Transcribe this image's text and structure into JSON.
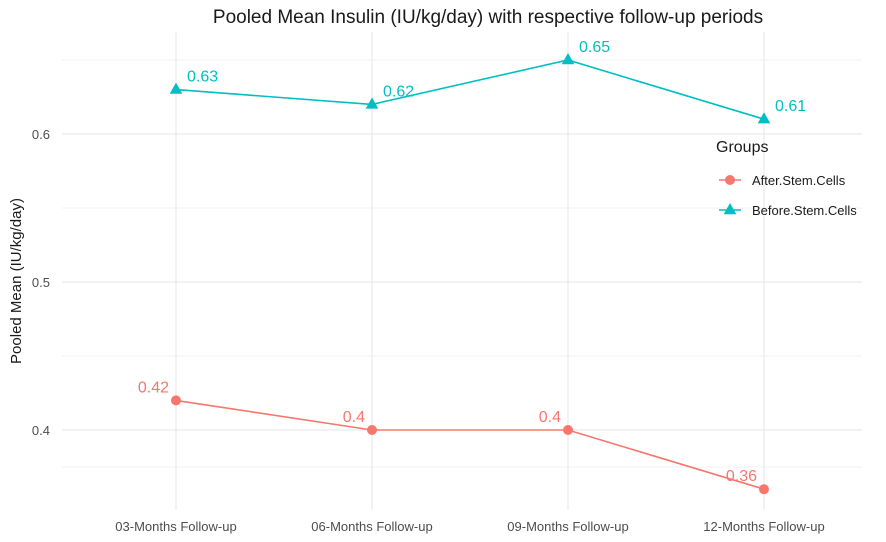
{
  "chart_data": {
    "type": "line",
    "title": "Pooled Mean Insulin (IU/kg/day) with respective follow-up periods",
    "xlabel": "",
    "ylabel": "Pooled Mean (IU/kg/day)",
    "categories": [
      "03-Months Follow-up",
      "06-Months Follow-up",
      "09-Months Follow-up",
      "12-Months Follow-up"
    ],
    "ylim": [
      0.35,
      0.66
    ],
    "yticks": [
      0.4,
      0.5,
      0.6
    ],
    "ytick_labels": [
      "0.4",
      "0.5",
      "0.6"
    ],
    "grid": true,
    "legend": {
      "title": "Groups",
      "position": "right",
      "entries": [
        "After.Stem.Cells",
        "Before.Stem.Cells"
      ]
    },
    "series": [
      {
        "name": "After.Stem.Cells",
        "color": "#F8766D",
        "marker": "circle",
        "values": [
          0.42,
          0.4,
          0.4,
          0.36
        ],
        "labels": [
          "0.42",
          "0.4",
          "0.4",
          "0.36"
        ]
      },
      {
        "name": "Before.Stem.Cells",
        "color": "#00BFC4",
        "marker": "triangle",
        "values": [
          0.63,
          0.62,
          0.65,
          0.61
        ],
        "labels": [
          "0.63",
          "0.62",
          "0.65",
          "0.61"
        ]
      }
    ]
  }
}
